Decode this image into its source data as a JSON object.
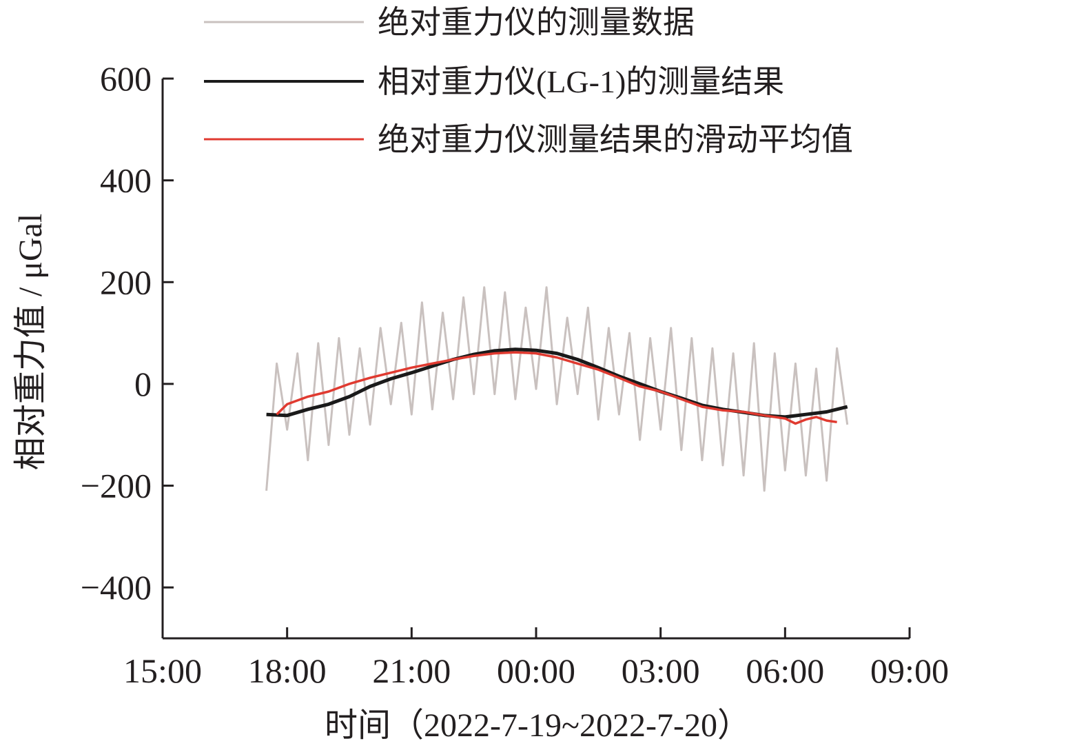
{
  "chart_data": {
    "type": "line",
    "title": "",
    "xlabel": "时间（2022-7-19~2022-7-20）",
    "ylabel": "相对重力值 / μGal",
    "x_unit": "hours since 2022-7-19 15:00",
    "xlim_labels": [
      "15:00",
      "18:00",
      "21:00",
      "00:00",
      "03:00",
      "06:00",
      "09:00"
    ],
    "ylim": [
      -500,
      600
    ],
    "yticks": [
      600,
      400,
      200,
      0,
      -200,
      -400
    ],
    "ytick_labels": [
      "600",
      "400",
      "200",
      "0",
      "−200",
      "−400"
    ],
    "grid": false,
    "legend_position": "top",
    "colors": {
      "absolute": "#c9c1bf",
      "relative": "#1a1a1a",
      "moving_average": "#e03a30",
      "axis": "#231f20"
    },
    "series": [
      {
        "name": "绝对重力仪的测量数据",
        "color": "#c9c1bf",
        "x": [
          "17:30",
          "17:45",
          "18:00",
          "18:15",
          "18:30",
          "18:45",
          "19:00",
          "19:15",
          "19:30",
          "19:45",
          "20:00",
          "20:15",
          "20:30",
          "20:45",
          "21:00",
          "21:15",
          "21:30",
          "21:45",
          "22:00",
          "22:15",
          "22:30",
          "22:45",
          "23:00",
          "23:15",
          "23:30",
          "23:45",
          "00:00",
          "00:15",
          "00:30",
          "00:45",
          "01:00",
          "01:15",
          "01:30",
          "01:45",
          "02:00",
          "02:15",
          "02:30",
          "02:45",
          "03:00",
          "03:15",
          "03:30",
          "03:45",
          "04:00",
          "04:15",
          "04:30",
          "04:45",
          "05:00",
          "05:15",
          "05:30",
          "05:45",
          "06:00",
          "06:15",
          "06:30",
          "06:45",
          "07:00",
          "07:15",
          "07:30"
        ],
        "values": [
          -210,
          40,
          -90,
          60,
          -150,
          80,
          -120,
          90,
          -100,
          70,
          -80,
          110,
          -40,
          120,
          -60,
          160,
          -50,
          140,
          -30,
          170,
          -20,
          190,
          -20,
          180,
          -30,
          150,
          -10,
          190,
          -40,
          130,
          -20,
          150,
          -70,
          110,
          -60,
          100,
          -110,
          90,
          -90,
          110,
          -130,
          90,
          -150,
          70,
          -160,
          60,
          -180,
          80,
          -210,
          60,
          -170,
          40,
          -180,
          30,
          -190,
          70,
          -80
        ]
      },
      {
        "name": "相对重力仪(LG-1)的测量结果",
        "color": "#1a1a1a",
        "x": [
          "17:30",
          "18:00",
          "18:30",
          "19:00",
          "19:30",
          "20:00",
          "20:30",
          "21:00",
          "21:30",
          "22:00",
          "22:30",
          "23:00",
          "23:30",
          "00:00",
          "00:30",
          "01:00",
          "01:30",
          "02:00",
          "02:30",
          "03:00",
          "03:30",
          "04:00",
          "04:30",
          "05:00",
          "05:30",
          "06:00",
          "06:30",
          "07:00",
          "07:30"
        ],
        "values": [
          -60,
          -62,
          -50,
          -40,
          -25,
          -5,
          10,
          22,
          35,
          48,
          58,
          65,
          68,
          66,
          60,
          48,
          32,
          15,
          0,
          -15,
          -28,
          -42,
          -50,
          -56,
          -62,
          -65,
          -60,
          -55,
          -45
        ]
      },
      {
        "name": "绝对重力仪测量结果的滑动平均值",
        "color": "#e03a30",
        "x": [
          "17:45",
          "18:00",
          "18:30",
          "19:00",
          "19:30",
          "20:00",
          "20:30",
          "21:00",
          "21:30",
          "22:00",
          "22:30",
          "23:00",
          "23:30",
          "00:00",
          "00:30",
          "01:00",
          "01:30",
          "02:00",
          "02:30",
          "03:00",
          "03:30",
          "04:00",
          "04:30",
          "05:00",
          "05:30",
          "06:00",
          "06:15",
          "06:30",
          "06:45",
          "07:00",
          "07:15"
        ],
        "values": [
          -60,
          -40,
          -25,
          -15,
          0,
          12,
          22,
          32,
          40,
          48,
          55,
          60,
          62,
          60,
          52,
          40,
          28,
          12,
          -5,
          -15,
          -30,
          -45,
          -52,
          -55,
          -62,
          -68,
          -78,
          -70,
          -65,
          -72,
          -75
        ]
      }
    ]
  }
}
